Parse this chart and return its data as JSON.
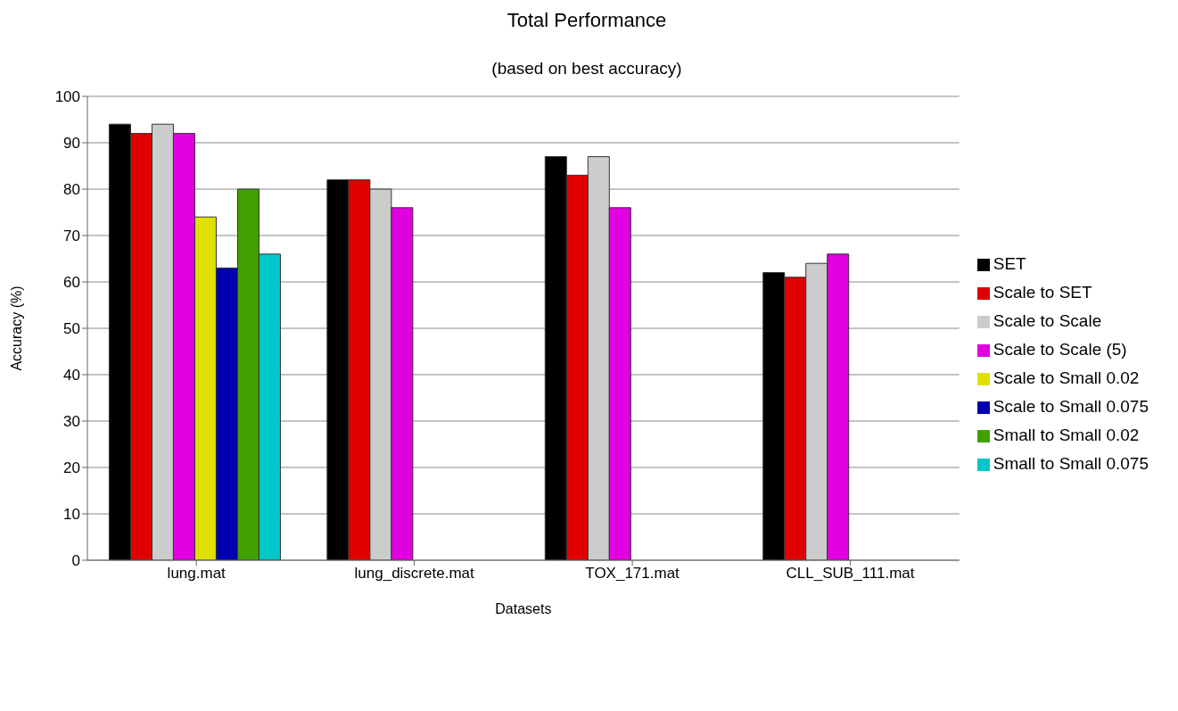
{
  "chart_data": {
    "type": "bar",
    "title": "Total Performance",
    "subtitle": "(based on best accuracy)",
    "xlabel": "Datasets",
    "ylabel": "Accuracy (%)",
    "categories": [
      "lung.mat",
      "lung_discrete.mat",
      "TOX_171.mat",
      "CLL_SUB_111.mat"
    ],
    "series": [
      {
        "name": "SET",
        "color": "#000000",
        "values": [
          94,
          82,
          87,
          62
        ]
      },
      {
        "name": "Scale to SET",
        "color": "#e00000",
        "values": [
          92,
          82,
          83,
          61
        ]
      },
      {
        "name": "Scale to Scale",
        "color": "#cccccc",
        "values": [
          94,
          80,
          87,
          64
        ]
      },
      {
        "name": "Scale to Scale (5)",
        "color": "#e000e0",
        "values": [
          92,
          76,
          76,
          66
        ]
      },
      {
        "name": "Scale to Small 0.02",
        "color": "#e0e000",
        "values": [
          74,
          null,
          null,
          null
        ]
      },
      {
        "name": "Scale to Small 0.075",
        "color": "#0000b0",
        "values": [
          63,
          null,
          null,
          null
        ]
      },
      {
        "name": "Small to Small 0.02",
        "color": "#40a000",
        "values": [
          80,
          null,
          null,
          null
        ]
      },
      {
        "name": "Small to Small 0.075",
        "color": "#00c8c8",
        "values": [
          66,
          null,
          null,
          null
        ]
      }
    ],
    "ylim": [
      0,
      100
    ],
    "yticks": [
      0,
      10,
      20,
      30,
      40,
      50,
      60,
      70,
      80,
      90,
      100
    ],
    "grid": "y",
    "legend": "right"
  }
}
